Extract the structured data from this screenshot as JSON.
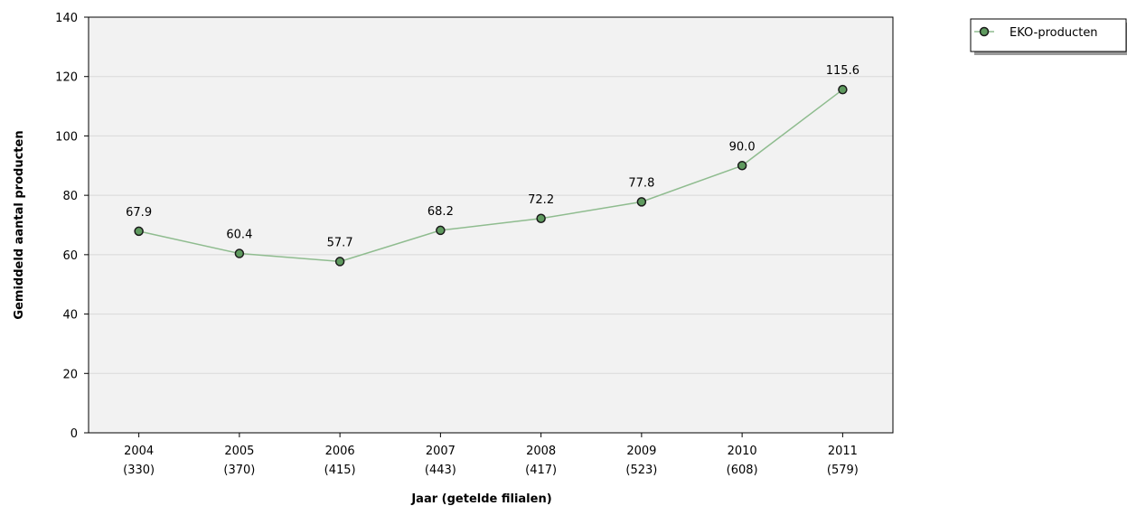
{
  "chart_data": {
    "type": "line",
    "xlabel": "Jaar (getelde filialen)",
    "ylabel": "Gemiddeld aantal producten",
    "ylim": [
      0,
      140
    ],
    "yticks": [
      0,
      20,
      40,
      60,
      80,
      100,
      120,
      140
    ],
    "categories": [
      "2004",
      "2005",
      "2006",
      "2007",
      "2008",
      "2009",
      "2010",
      "2011"
    ],
    "category_counts": [
      "(330)",
      "(370)",
      "(415)",
      "(443)",
      "(417)",
      "(523)",
      "(608)",
      "(579)"
    ],
    "series": [
      {
        "name": "EKO-producten",
        "values": [
          67.9,
          60.4,
          57.7,
          68.2,
          72.2,
          77.8,
          90.0,
          115.6
        ],
        "labels": [
          "67.9",
          "60.4",
          "57.7",
          "68.2",
          "72.2",
          "77.8",
          "90.0",
          "115.6"
        ]
      }
    ],
    "legend": "top-right",
    "grid": true,
    "colors": {
      "line": "#8fbc8f",
      "marker_fill": "#5f9a5f",
      "marker_stroke": "#1a1a1a",
      "plot_bg": "#f2f2f2",
      "grid": "#d9d9d9"
    }
  }
}
